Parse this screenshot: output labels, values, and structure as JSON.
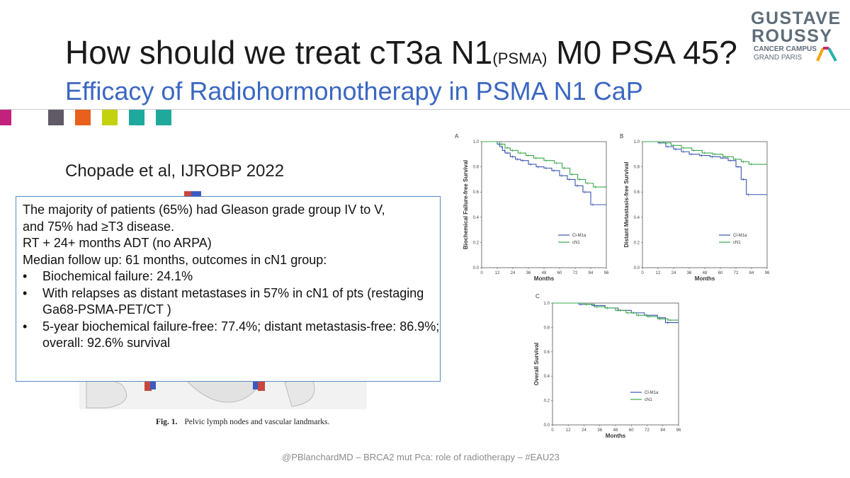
{
  "slide": {
    "title_main": "How should we treat cT3a N1",
    "title_sub": "(PSMA)",
    "title_end": " M0 PSA 45?",
    "subtitle": "Efficacy of Radiohormonotherapy in PSMA N1 CaP",
    "author_ref": "Chopade et al, IJROBP 2022",
    "footer": "@PBlanchardMD – BRCA2 mut Pca: role of radiotherapy – #EAU23"
  },
  "logo": {
    "line1": "GUSTAVE",
    "line2": "ROUSSY",
    "line3": "CANCER CAMPUS",
    "line4": "GRAND PARIS",
    "colors": [
      "#f4a300",
      "#c62a78",
      "#23b5a9",
      "#5f6d7a"
    ]
  },
  "accent_squares": [
    "#c2227c",
    "#5f5a66",
    "#e8601c",
    "#c4d10f",
    "#1fa99c"
  ],
  "textbox": {
    "lines": [
      "The majority of patients (65%) had Gleason grade group IV to V,",
      "and 75% had ≥T3 disease.",
      "RT + 24+ months ADT (no ARPA)",
      "Median follow up: 61 months, outcomes in cN1 group:"
    ],
    "bullets": [
      "Biochemical failure: 24.1%",
      "With relapses as distant metastases in 57% in cN1 of pts (restaging Ga68-PSMA-PET/CT )",
      "5-year biochemical failure-free: 77.4%; distant metastasis-free: 86.9%; overall: 92.6% survival"
    ],
    "bullet_char": "•"
  },
  "figure": {
    "caption_label": "Fig. 1.",
    "caption_text": "Pelvic lymph nodes and vascular landmarks."
  },
  "chart_data": [
    {
      "type": "line",
      "panel": "A",
      "ylabel": "Biochemical Failure-free Survival",
      "xlabel": "Months",
      "x_ticks": [
        0,
        12,
        24,
        36,
        48,
        60,
        72,
        84,
        96
      ],
      "y_ticks": [
        0.0,
        0.2,
        0.4,
        0.6,
        0.8,
        1.0
      ],
      "xlim": [
        0,
        96
      ],
      "ylim": [
        0,
        1.0
      ],
      "legend": [
        "Cl-M1a",
        "cN1"
      ],
      "series": [
        {
          "name": "Cl-M1a",
          "color": "#3a56b0",
          "x": [
            0,
            12,
            14,
            16,
            18,
            22,
            26,
            30,
            36,
            42,
            48,
            54,
            60,
            66,
            72,
            78,
            84,
            96
          ],
          "y": [
            1.0,
            0.98,
            0.96,
            0.93,
            0.91,
            0.88,
            0.86,
            0.85,
            0.82,
            0.8,
            0.79,
            0.77,
            0.73,
            0.7,
            0.65,
            0.6,
            0.5,
            0.5
          ]
        },
        {
          "name": "cN1",
          "color": "#3aa84a",
          "x": [
            0,
            14,
            18,
            22,
            28,
            34,
            40,
            48,
            56,
            62,
            68,
            74,
            80,
            86,
            96
          ],
          "y": [
            1.0,
            0.98,
            0.95,
            0.93,
            0.91,
            0.89,
            0.87,
            0.85,
            0.83,
            0.79,
            0.74,
            0.7,
            0.67,
            0.64,
            0.64
          ]
        }
      ]
    },
    {
      "type": "line",
      "panel": "B",
      "ylabel": "Distant Metastasis-free Survival",
      "xlabel": "Months",
      "x_ticks": [
        0,
        12,
        24,
        36,
        48,
        60,
        72,
        84,
        96
      ],
      "y_ticks": [
        0.0,
        0.2,
        0.4,
        0.6,
        0.8,
        1.0
      ],
      "xlim": [
        0,
        96
      ],
      "ylim": [
        0,
        1.0
      ],
      "legend": [
        "Cl-M1a",
        "cN1"
      ],
      "series": [
        {
          "name": "Cl-M1a",
          "color": "#3a56b0",
          "x": [
            0,
            12,
            18,
            24,
            30,
            36,
            44,
            52,
            60,
            66,
            72,
            76,
            80,
            96
          ],
          "y": [
            1.0,
            0.99,
            0.96,
            0.94,
            0.92,
            0.9,
            0.89,
            0.88,
            0.87,
            0.85,
            0.8,
            0.7,
            0.58,
            0.58
          ]
        },
        {
          "name": "cN1",
          "color": "#3aa84a",
          "x": [
            0,
            16,
            22,
            30,
            38,
            46,
            54,
            62,
            70,
            76,
            82,
            96
          ],
          "y": [
            1.0,
            0.99,
            0.97,
            0.95,
            0.93,
            0.91,
            0.9,
            0.88,
            0.86,
            0.84,
            0.82,
            0.82
          ]
        }
      ]
    },
    {
      "type": "line",
      "panel": "C",
      "ylabel": "Overall Survival",
      "xlabel": "Months",
      "x_ticks": [
        0,
        12,
        24,
        36,
        48,
        60,
        72,
        84,
        96
      ],
      "y_ticks": [
        0.0,
        0.2,
        0.4,
        0.6,
        0.8,
        1.0
      ],
      "xlim": [
        0,
        96
      ],
      "ylim": [
        0,
        1.0
      ],
      "legend": [
        "Cl-M1a",
        "cN1"
      ],
      "series": [
        {
          "name": "Cl-M1a",
          "color": "#3a56b0",
          "x": [
            0,
            20,
            30,
            40,
            50,
            60,
            70,
            80,
            86,
            96
          ],
          "y": [
            1.0,
            0.99,
            0.98,
            0.96,
            0.94,
            0.92,
            0.9,
            0.88,
            0.84,
            0.84
          ]
        },
        {
          "name": "cN1",
          "color": "#3aa84a",
          "x": [
            0,
            24,
            32,
            40,
            48,
            56,
            64,
            72,
            80,
            88,
            96
          ],
          "y": [
            1.0,
            0.99,
            0.97,
            0.96,
            0.94,
            0.92,
            0.9,
            0.89,
            0.87,
            0.86,
            0.86
          ]
        }
      ]
    }
  ]
}
